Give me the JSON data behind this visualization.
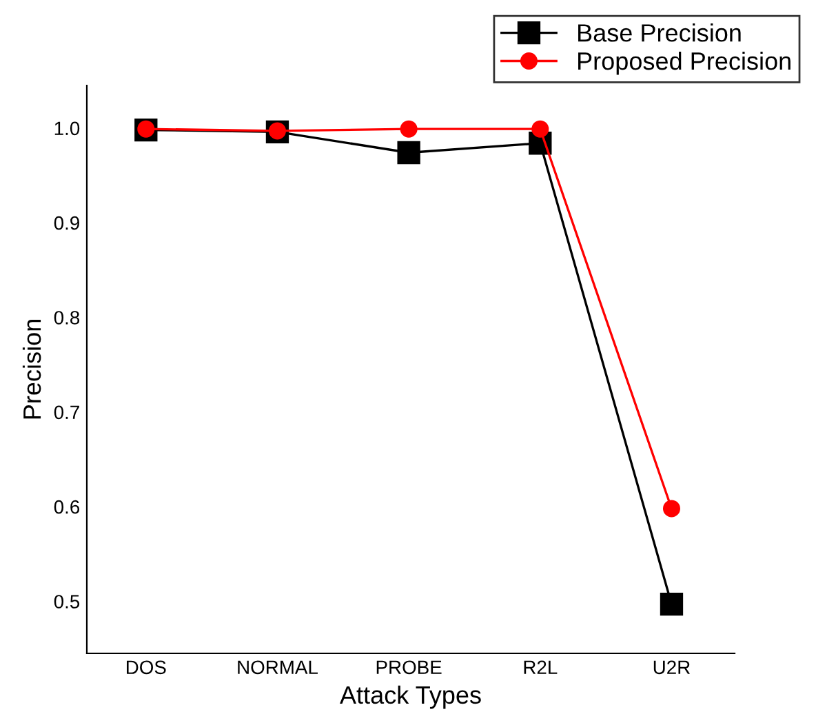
{
  "chart_data": {
    "type": "line",
    "xlabel": "Attack Types",
    "ylabel": "Precision",
    "categories": [
      "DOS",
      "NORMAL",
      "PROBE",
      "R2L",
      "U2R"
    ],
    "series": [
      {
        "name": "Base Precision",
        "color": "#000000",
        "marker": "square",
        "values": [
          0.998,
          0.996,
          0.974,
          0.984,
          0.497
        ]
      },
      {
        "name": "Proposed Precision",
        "color": "#ff0000",
        "marker": "circle",
        "values": [
          0.999,
          0.997,
          0.999,
          0.999,
          0.598
        ]
      }
    ],
    "ylim": [
      0.445,
      1.045
    ],
    "yticks": [
      {
        "value": 0.5,
        "label": "0.5"
      },
      {
        "value": 0.6,
        "label": "0.6"
      },
      {
        "value": 0.7,
        "label": "0.7"
      },
      {
        "value": 0.8,
        "label": "0.8"
      },
      {
        "value": 0.9,
        "label": "0.9"
      },
      {
        "value": 1.0,
        "label": "1.0"
      }
    ],
    "grid": false,
    "legend": "top right",
    "line_style": "solid"
  }
}
